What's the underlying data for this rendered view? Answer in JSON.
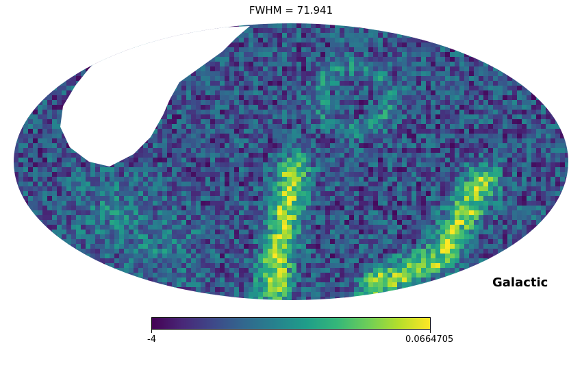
{
  "title": "FWHM = 71.941",
  "coordinate_system_label": "Galactic",
  "colormap": {
    "name": "viridis",
    "stops": [
      "#440154",
      "#482878",
      "#3e4989",
      "#31688e",
      "#26828e",
      "#1f9e89",
      "#35b779",
      "#6ece58",
      "#b5de2b",
      "#fde725"
    ],
    "masked_color": "#ffffff"
  },
  "colorbar": {
    "min_label": "-4",
    "max_label": "0.0664705"
  },
  "map": {
    "projection": "mollweide",
    "masked_region": "upper-left (no data, white)",
    "features": [
      {
        "name": "central bright arc",
        "level": 0.92
      },
      {
        "name": "lower-right bright arc",
        "level": 0.9
      },
      {
        "name": "upper ring structure",
        "level": 0.55
      },
      {
        "name": "background noise",
        "level": 0.3
      }
    ]
  }
}
